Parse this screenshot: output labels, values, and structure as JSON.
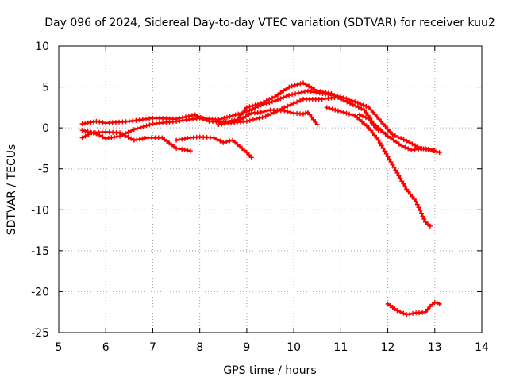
{
  "chart_data": {
    "type": "line",
    "title": "Day 096 of 2024, Sidereal Day-to-day VTEC variation (SDTVAR) for receiver kuu2",
    "xlabel": "GPS time / hours",
    "ylabel": "SDTVAR / TECUs",
    "xlim": [
      5,
      14
    ],
    "ylim": [
      -25,
      10
    ],
    "xticks": [
      "5",
      "6",
      "7",
      "8",
      "9",
      "10",
      "11",
      "12",
      "13",
      "14"
    ],
    "yticks": [
      "10",
      "5",
      "0",
      "-5",
      "-10",
      "-15",
      "-20",
      "-25"
    ],
    "grid": true,
    "color": "#ff0000",
    "series": [
      {
        "name": "trace-1",
        "points": [
          [
            5.5,
            0.5
          ],
          [
            5.8,
            0.8
          ],
          [
            6.0,
            0.6
          ],
          [
            6.5,
            0.8
          ],
          [
            7.0,
            1.2
          ],
          [
            7.5,
            1.1
          ],
          [
            7.9,
            1.6
          ],
          [
            8.2,
            0.8
          ],
          [
            8.5,
            0.7
          ],
          [
            8.8,
            1.0
          ],
          [
            9.0,
            2.5
          ],
          [
            9.3,
            3.0
          ],
          [
            9.6,
            3.8
          ],
          [
            9.9,
            5.0
          ],
          [
            10.2,
            5.5
          ],
          [
            10.5,
            4.5
          ],
          [
            10.8,
            4.2
          ],
          [
            11.0,
            3.5
          ],
          [
            11.2,
            3.0
          ],
          [
            11.5,
            2.2
          ],
          [
            11.7,
            0.5
          ],
          [
            12.0,
            -1.0
          ],
          [
            12.3,
            -2.2
          ],
          [
            12.5,
            -2.7
          ],
          [
            12.8,
            -2.5
          ],
          [
            13.1,
            -3.0
          ]
        ]
      },
      {
        "name": "trace-2",
        "points": [
          [
            5.5,
            -0.3
          ],
          [
            5.8,
            -0.7
          ],
          [
            6.0,
            -1.3
          ],
          [
            6.3,
            -1.0
          ],
          [
            6.6,
            -0.2
          ],
          [
            7.0,
            0.5
          ],
          [
            7.5,
            0.8
          ],
          [
            8.0,
            1.2
          ],
          [
            8.4,
            1.0
          ],
          [
            8.7,
            1.5
          ],
          [
            9.0,
            2.0
          ],
          [
            9.3,
            2.8
          ],
          [
            9.6,
            3.3
          ],
          [
            9.9,
            4.0
          ],
          [
            10.3,
            4.5
          ],
          [
            10.8,
            4.0
          ],
          [
            11.0,
            3.8
          ],
          [
            11.3,
            3.2
          ],
          [
            11.6,
            2.5
          ],
          [
            11.9,
            0.5
          ],
          [
            12.1,
            -0.8
          ],
          [
            12.4,
            -1.6
          ],
          [
            12.7,
            -2.5
          ],
          [
            13.0,
            -2.8
          ]
        ]
      },
      {
        "name": "trace-3",
        "points": [
          [
            5.5,
            -1.2
          ],
          [
            5.7,
            -0.6
          ],
          [
            6.0,
            -0.5
          ],
          [
            6.3,
            -0.6
          ],
          [
            6.6,
            -1.5
          ],
          [
            6.9,
            -1.2
          ],
          [
            7.2,
            -1.2
          ],
          [
            7.5,
            -2.5
          ],
          [
            7.8,
            -2.8
          ]
        ]
      },
      {
        "name": "trace-4",
        "points": [
          [
            7.5,
            -1.5
          ],
          [
            7.8,
            -1.2
          ],
          [
            8.0,
            -1.1
          ],
          [
            8.3,
            -1.2
          ],
          [
            8.5,
            -1.8
          ],
          [
            8.7,
            -1.5
          ],
          [
            9.0,
            -3.0
          ],
          [
            9.1,
            -3.6
          ]
        ]
      },
      {
        "name": "trace-5",
        "points": [
          [
            8.4,
            0.4
          ],
          [
            8.8,
            0.8
          ],
          [
            9.1,
            1.8
          ],
          [
            9.3,
            1.9
          ],
          [
            9.5,
            2.2
          ],
          [
            9.8,
            2.1
          ],
          [
            10.0,
            1.8
          ],
          [
            10.2,
            1.7
          ],
          [
            10.3,
            1.9
          ],
          [
            10.5,
            0.4
          ]
        ]
      },
      {
        "name": "trace-6",
        "points": [
          [
            10.7,
            2.5
          ],
          [
            11.0,
            2.0
          ],
          [
            11.3,
            1.5
          ],
          [
            11.6,
            0.0
          ],
          [
            11.8,
            -1.5
          ],
          [
            12.0,
            -3.5
          ],
          [
            12.2,
            -5.5
          ],
          [
            12.4,
            -7.5
          ],
          [
            12.6,
            -9.0
          ],
          [
            12.8,
            -11.5
          ],
          [
            12.9,
            -12.0
          ]
        ]
      },
      {
        "name": "trace-7",
        "points": [
          [
            11.4,
            1.6
          ],
          [
            11.6,
            1.1
          ],
          [
            11.7,
            0.3
          ],
          [
            11.8,
            -0.3
          ]
        ]
      },
      {
        "name": "trace-8",
        "points": [
          [
            8.6,
            0.6
          ],
          [
            9.0,
            0.8
          ],
          [
            9.4,
            1.4
          ],
          [
            9.8,
            2.5
          ],
          [
            10.2,
            3.5
          ],
          [
            10.6,
            3.5
          ],
          [
            11.0,
            3.8
          ]
        ]
      },
      {
        "name": "trace-9",
        "points": [
          [
            12.0,
            -21.5
          ],
          [
            12.2,
            -22.3
          ],
          [
            12.4,
            -22.8
          ],
          [
            12.6,
            -22.6
          ],
          [
            12.8,
            -22.5
          ],
          [
            12.9,
            -21.8
          ],
          [
            13.0,
            -21.3
          ],
          [
            13.1,
            -21.5
          ]
        ]
      }
    ]
  }
}
